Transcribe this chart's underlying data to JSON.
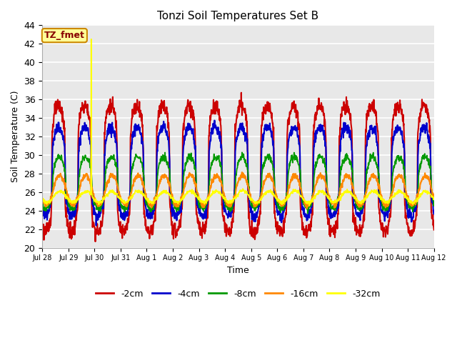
{
  "title": "Tonzi Soil Temperatures Set B",
  "xlabel": "Time",
  "ylabel": "Soil Temperature (C)",
  "ylim": [
    20,
    44
  ],
  "bg_color": "#e8e8e8",
  "fig_color": "#ffffff",
  "series_colors": [
    "#cc0000",
    "#0000cc",
    "#009900",
    "#ff8800",
    "#ffff00"
  ],
  "series_labels": [
    "-2cm",
    "-4cm",
    "-8cm",
    "-16cm",
    "-32cm"
  ],
  "tick_labels": [
    "Jul 28",
    "Jul 29",
    "Jul 30",
    "Jul 31",
    "Aug 1",
    "Aug 2",
    "Aug 3",
    "Aug 4",
    "Aug 5",
    "Aug 6",
    "Aug 7",
    "Aug 8",
    "Aug 9",
    "Aug 10",
    "Aug 11",
    "Aug 12"
  ],
  "annotation_text": "TZ_fmet",
  "annotation_bg": "#ffff99",
  "annotation_border": "#cc8800",
  "n_days": 15,
  "pts_per_day": 96,
  "params": [
    {
      "base": 28.5,
      "amp": 6.8,
      "phase": 0.62,
      "sharp": 4.0,
      "noise": 0.4
    },
    {
      "base": 28.2,
      "amp": 4.8,
      "phase": 0.63,
      "sharp": 3.0,
      "noise": 0.3
    },
    {
      "base": 27.0,
      "amp": 2.8,
      "phase": 0.65,
      "sharp": 2.0,
      "noise": 0.2
    },
    {
      "base": 26.2,
      "amp": 1.6,
      "phase": 0.67,
      "sharp": 1.2,
      "noise": 0.15
    },
    {
      "base": 25.5,
      "amp": 0.6,
      "phase": 0.68,
      "sharp": 1.0,
      "noise": 0.1
    }
  ],
  "spike_day": 1.88,
  "spike_value": 42.5,
  "spike_series": 4
}
